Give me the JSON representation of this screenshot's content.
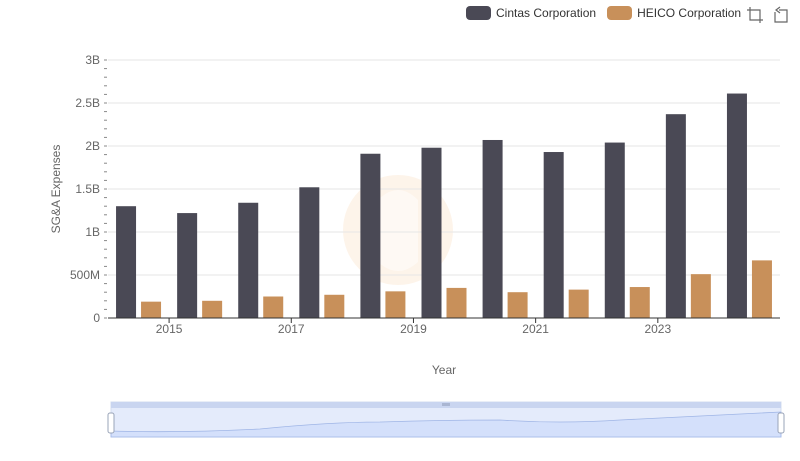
{
  "legend": [
    {
      "label": "Cintas Corporation",
      "color": "#4a4955"
    },
    {
      "label": "HEICO Corporation",
      "color": "#c8905a"
    }
  ],
  "toolbox": {
    "zoom_icon": "data-zoom-icon",
    "reset_icon": "zoom-reset-icon"
  },
  "chart_data": {
    "type": "bar",
    "categories": [
      "2014",
      "2015",
      "2016",
      "2017",
      "2018",
      "2019",
      "2020",
      "2021",
      "2022",
      "2023",
      "2024"
    ],
    "x_tick_labels": [
      "2015",
      "2017",
      "2019",
      "2021",
      "2023"
    ],
    "y_tick_labels": [
      "0",
      "500M",
      "1B",
      "1.5B",
      "2B",
      "2.5B",
      "3B"
    ],
    "series": [
      {
        "name": "Cintas Corporation",
        "color": "#4a4955",
        "values": [
          1300000000,
          1220000000,
          1340000000,
          1520000000,
          1910000000,
          1980000000,
          2070000000,
          1930000000,
          2040000000,
          2370000000,
          2610000000
        ]
      },
      {
        "name": "HEICO Corporation",
        "color": "#c8905a",
        "values": [
          190000000,
          200000000,
          250000000,
          270000000,
          310000000,
          350000000,
          300000000,
          330000000,
          360000000,
          510000000,
          670000000
        ]
      }
    ],
    "xlabel": "Year",
    "ylabel": "SG&A Expenses",
    "ylim": [
      0,
      3000000000
    ],
    "grid": true,
    "legend_position": "top-right"
  }
}
